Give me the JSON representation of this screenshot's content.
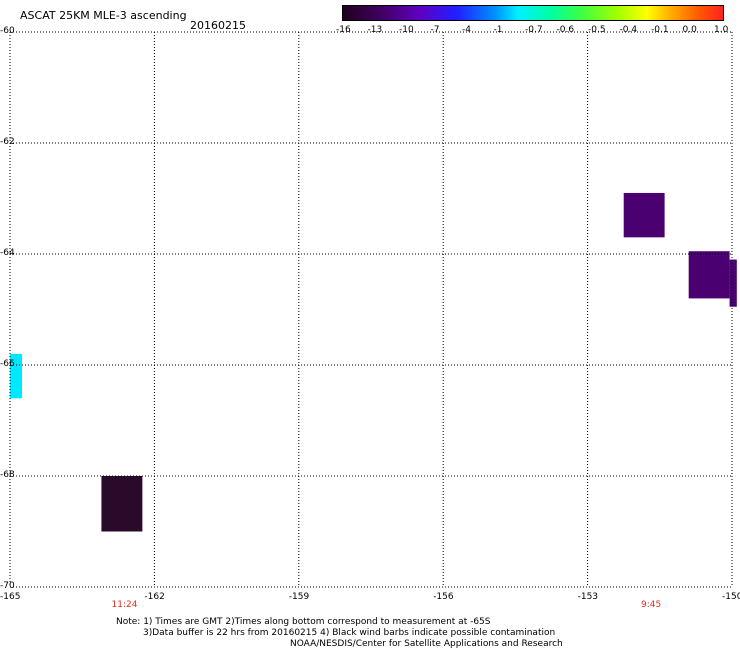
{
  "header": {
    "title": "ASCAT 25KM MLE-3 ascending",
    "date": "20160215"
  },
  "colorbar": {
    "labels": [
      "-16",
      "-13",
      "-10",
      "-7",
      "-4",
      "-1",
      "-0.7",
      "-0.6",
      "-0.5",
      "-0.4",
      "-0.1",
      "0.0",
      "1.0"
    ],
    "colors": [
      "#2a0a2a",
      "#4a0070",
      "#6a00c8",
      "#2020ff",
      "#0080ff",
      "#00e0ff",
      "#00ffc0",
      "#40ff40",
      "#a0ff00",
      "#ffff00",
      "#ffa000",
      "#ff6000",
      "#ff2020"
    ]
  },
  "map": {
    "lon_range": [
      -165,
      -150
    ],
    "lat_range": [
      -70,
      -60
    ],
    "x_ticks": [
      "-165",
      "-162",
      "-159",
      "-156",
      "-153",
      "-150"
    ],
    "y_ticks": [
      "-60",
      "-62",
      "-64",
      "-66",
      "-68",
      "-70"
    ],
    "time_labels": [
      {
        "text": "11:24",
        "lon": -162.6
      },
      {
        "text": "9:45",
        "lon": -151.6
      }
    ],
    "cells": [
      {
        "lon0": -165.0,
        "lon1": -164.75,
        "lat0": -66.6,
        "lat1": -65.8,
        "color": "#00e8ff"
      },
      {
        "lon0": -163.1,
        "lon1": -162.25,
        "lat0": -69.0,
        "lat1": -68.0,
        "color": "#2a0a2a"
      },
      {
        "lon0": -152.25,
        "lon1": -151.4,
        "lat0": -63.7,
        "lat1": -62.9,
        "color": "#4a0070"
      },
      {
        "lon0": -150.9,
        "lon1": -150.05,
        "lat0": -64.8,
        "lat1": -63.95,
        "color": "#4a0070"
      },
      {
        "lon0": -150.05,
        "lon1": -149.9,
        "lat0": -64.95,
        "lat1": -64.1,
        "color": "#4a0070"
      }
    ]
  },
  "footer": {
    "line1": "Note: 1) Times are GMT 2)Times along bottom correspond to measurement at -65S",
    "line2": "3)Data buffer is 22 hrs from 20160215 4) Black wind barbs indicate possible contamination",
    "line3": "NOAA/NESDIS/Center for Satellite Applications and Research"
  }
}
